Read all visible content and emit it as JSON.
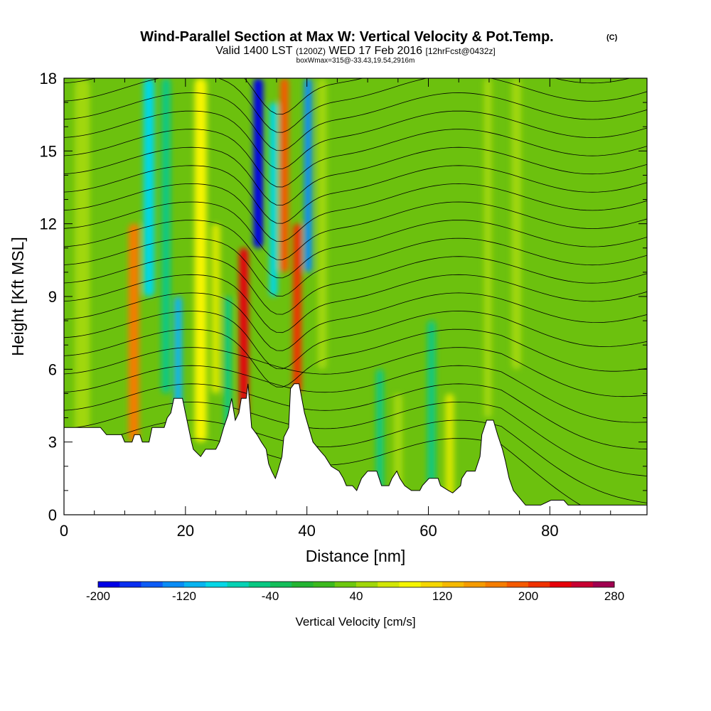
{
  "title": {
    "main": "Wind-Parallel Section at Max W: Vertical Velocity & Pot.Temp.",
    "copyright": "(C)",
    "valid_prefix": "Valid 1400 LST",
    "valid_utc": "(1200Z)",
    "valid_date": "WED 17 Feb 2016",
    "forecast": "[12hrFcst@0432z]",
    "box_info": "boxWmax=315@-33.43,19.54,2916m"
  },
  "colors": {
    "terrain": "#ffffff",
    "background_field": "#6cc10e",
    "contour": "#000000"
  },
  "chart_data": {
    "type": "heatmap",
    "xlabel": "Distance [nm]",
    "ylabel": "Height [Kft MSL]",
    "xlim": [
      0,
      96
    ],
    "ylim": [
      0,
      18
    ],
    "x_ticks": [
      0,
      20,
      40,
      60,
      80
    ],
    "x_tick_labels": [
      "0",
      "20",
      "40",
      "60",
      "80"
    ],
    "y_ticks": [
      0,
      3,
      6,
      9,
      12,
      15,
      18
    ],
    "y_tick_labels": [
      "0",
      "3",
      "6",
      "9",
      "12",
      "15",
      "18"
    ],
    "colorbar": {
      "label": "Vertical Velocity [cm/s]",
      "min": -200,
      "max": 280,
      "step": 20,
      "tick_values": [
        -200,
        -120,
        -40,
        40,
        120,
        200,
        280
      ],
      "tick_labels": [
        "-200",
        "-120",
        "-40",
        "40",
        "120",
        "200",
        "280"
      ],
      "colors": [
        "#0000e6",
        "#0a2ef0",
        "#0d5cf5",
        "#0a8cf5",
        "#08b4f0",
        "#05d7e6",
        "#05d2b4",
        "#08c882",
        "#14be5a",
        "#23b432",
        "#3cb91e",
        "#6ec80f",
        "#a0d70a",
        "#d2e605",
        "#f5f500",
        "#f5d700",
        "#f5b900",
        "#f59b00",
        "#f57d00",
        "#f55a00",
        "#f03200",
        "#e6000a",
        "#c80032",
        "#a00050"
      ]
    },
    "features": [
      {
        "x": 3,
        "w": 2.5,
        "zmin": 2,
        "zmax": 18,
        "value": 40
      },
      {
        "x": 11.5,
        "w": 1.7,
        "zmin": 3,
        "zmax": 12,
        "value": 170
      },
      {
        "x": 14,
        "w": 1.8,
        "zmin": 9,
        "zmax": 18,
        "value": -90
      },
      {
        "x": 16.8,
        "w": 1.5,
        "zmin": 5,
        "zmax": 18,
        "value": -60
      },
      {
        "x": 18.8,
        "w": 1.3,
        "zmin": 3,
        "zmax": 9,
        "value": -120
      },
      {
        "x": 22.5,
        "w": 2.0,
        "zmin": 3,
        "zmax": 18,
        "value": 90
      },
      {
        "x": 25,
        "w": 1.5,
        "zmin": 5,
        "zmax": 12,
        "value": 60
      },
      {
        "x": 27,
        "w": 1.2,
        "zmin": 3,
        "zmax": 9,
        "value": -60
      },
      {
        "x": 29.6,
        "w": 1.5,
        "zmin": 4,
        "zmax": 11,
        "value": 230
      },
      {
        "x": 32,
        "w": 1.6,
        "zmin": 11,
        "zmax": 18,
        "value": -200
      },
      {
        "x": 34.5,
        "w": 1.3,
        "zmin": 9,
        "zmax": 17,
        "value": -100
      },
      {
        "x": 36.3,
        "w": 1.4,
        "zmin": 10,
        "zmax": 18,
        "value": 190
      },
      {
        "x": 38.4,
        "w": 1.4,
        "zmin": 5,
        "zmax": 12,
        "value": 200
      },
      {
        "x": 40.2,
        "w": 1.3,
        "zmin": 10,
        "zmax": 18,
        "value": -140
      },
      {
        "x": 42.5,
        "w": 1.5,
        "zmin": 6,
        "zmax": 18,
        "value": 50
      },
      {
        "x": 52,
        "w": 1.2,
        "zmin": 0,
        "zmax": 6,
        "value": -60
      },
      {
        "x": 55,
        "w": 1.5,
        "zmin": 0,
        "zmax": 5,
        "value": 50
      },
      {
        "x": 60.5,
        "w": 1.3,
        "zmin": 0,
        "zmax": 8,
        "value": -50
      },
      {
        "x": 63.5,
        "w": 1.5,
        "zmin": 0,
        "zmax": 5,
        "value": 60
      },
      {
        "x": 69.8,
        "w": 1.3,
        "zmin": 4,
        "zmax": 18,
        "value": 55
      },
      {
        "x": 74.5,
        "w": 1.6,
        "zmin": 6,
        "zmax": 18,
        "value": 50
      }
    ],
    "terrain": [
      [
        0,
        3.6
      ],
      [
        6,
        3.6
      ],
      [
        7,
        3.3
      ],
      [
        9.5,
        3.3
      ],
      [
        10,
        3.0
      ],
      [
        11.2,
        3.0
      ],
      [
        11.6,
        3.3
      ],
      [
        12.5,
        3.3
      ],
      [
        12.9,
        3.0
      ],
      [
        14,
        3.0
      ],
      [
        14.5,
        3.6
      ],
      [
        16.5,
        3.6
      ],
      [
        17,
        4.0
      ],
      [
        17.6,
        4.2
      ],
      [
        18.1,
        4.8
      ],
      [
        19.5,
        4.8
      ],
      [
        20,
        4.2
      ],
      [
        20.5,
        3.6
      ],
      [
        21,
        3.0
      ],
      [
        21.3,
        2.7
      ],
      [
        22.5,
        2.4
      ],
      [
        23.3,
        2.7
      ],
      [
        25,
        2.7
      ],
      [
        25.6,
        3.0
      ],
      [
        26.3,
        3.6
      ],
      [
        27,
        4.1
      ],
      [
        27.6,
        4.8
      ],
      [
        28.2,
        3.9
      ],
      [
        28.8,
        4.2
      ],
      [
        29.2,
        4.8
      ],
      [
        30,
        4.8
      ],
      [
        30.3,
        5.4
      ],
      [
        30.9,
        3.6
      ],
      [
        31.8,
        3.3
      ],
      [
        32.5,
        3.0
      ],
      [
        33.3,
        2.7
      ],
      [
        33.7,
        2.1
      ],
      [
        34.2,
        1.8
      ],
      [
        34.8,
        1.5
      ],
      [
        35.2,
        1.8
      ],
      [
        35.9,
        2.4
      ],
      [
        36.2,
        3.2
      ],
      [
        37,
        3.6
      ],
      [
        37.3,
        5.2
      ],
      [
        37.9,
        5.4
      ],
      [
        38.7,
        5.4
      ],
      [
        39.6,
        4.2
      ],
      [
        40.3,
        3.6
      ],
      [
        41,
        3.0
      ],
      [
        42.3,
        2.6
      ],
      [
        43,
        2.4
      ],
      [
        44,
        2.0
      ],
      [
        45.3,
        1.8
      ],
      [
        46,
        1.5
      ],
      [
        46.5,
        1.2
      ],
      [
        47.5,
        1.2
      ],
      [
        48.2,
        1.0
      ],
      [
        49,
        1.5
      ],
      [
        50,
        1.8
      ],
      [
        51.5,
        1.8
      ],
      [
        52.3,
        1.2
      ],
      [
        53.5,
        1.2
      ],
      [
        54,
        1.5
      ],
      [
        54.8,
        1.8
      ],
      [
        55.3,
        1.5
      ],
      [
        56.1,
        1.2
      ],
      [
        57.2,
        1.0
      ],
      [
        58.6,
        1.0
      ],
      [
        59,
        1.2
      ],
      [
        60.1,
        1.5
      ],
      [
        61.6,
        1.5
      ],
      [
        62,
        1.2
      ],
      [
        63.3,
        1.0
      ],
      [
        64,
        0.9
      ],
      [
        65.3,
        1.2
      ],
      [
        65.5,
        1.5
      ],
      [
        66.3,
        1.8
      ],
      [
        67.7,
        1.8
      ],
      [
        68.5,
        2.4
      ],
      [
        68.8,
        3.3
      ],
      [
        69.6,
        3.9
      ],
      [
        70.7,
        3.9
      ],
      [
        71.4,
        3.3
      ],
      [
        72.2,
        2.7
      ],
      [
        72.7,
        2.2
      ],
      [
        73.3,
        1.5
      ],
      [
        74,
        1.0
      ],
      [
        75,
        0.7
      ],
      [
        76,
        0.4
      ],
      [
        78.5,
        0.4
      ],
      [
        80.2,
        0.6
      ],
      [
        82.3,
        0.6
      ],
      [
        83,
        0.4
      ],
      [
        96,
        0.4
      ]
    ]
  }
}
